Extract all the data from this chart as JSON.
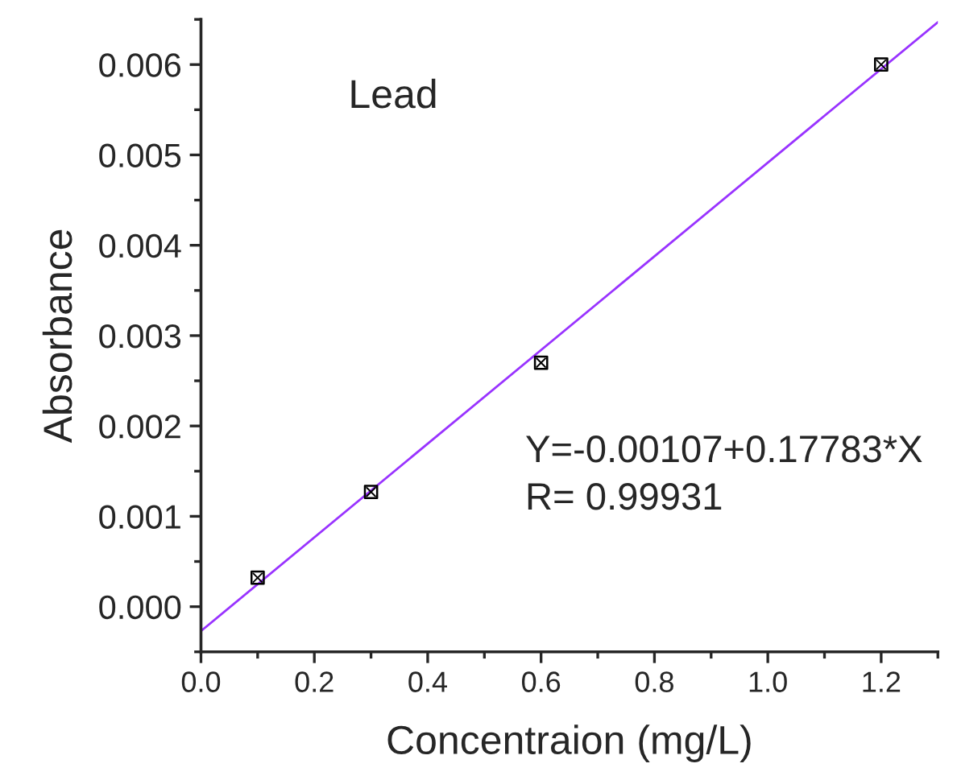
{
  "chart_data": {
    "type": "scatter",
    "xlabel": "Concentraion (mg/L)",
    "ylabel": "Absorbance",
    "xlim": [
      0,
      1.3
    ],
    "ylim": [
      -0.0005,
      0.0065
    ],
    "xticks": [
      {
        "value": 0,
        "label": "0.0"
      },
      {
        "value": 0.2,
        "label": "0.2"
      },
      {
        "value": 0.4,
        "label": "0.4"
      },
      {
        "value": 0.6,
        "label": "0.6"
      },
      {
        "value": 0.8,
        "label": "0.8"
      },
      {
        "value": 1.0,
        "label": "1.0"
      },
      {
        "value": 1.2,
        "label": "1.2"
      }
    ],
    "yticks": [
      {
        "value": 0,
        "label": "0.000"
      },
      {
        "value": 0.001,
        "label": "0.001"
      },
      {
        "value": 0.002,
        "label": "0.002"
      },
      {
        "value": 0.003,
        "label": "0.003"
      },
      {
        "value": 0.004,
        "label": "0.004"
      },
      {
        "value": 0.005,
        "label": "0.005"
      },
      {
        "value": 0.006,
        "label": "0.006"
      }
    ],
    "grid": false,
    "legend": false,
    "series": [
      {
        "marker": "square",
        "color": "#000000",
        "x": [
          0.1,
          0.3,
          0.6,
          1.2
        ],
        "values": [
          0.00032,
          0.00127,
          0.0027,
          0.006
        ]
      },
      {
        "type": "line",
        "marker": "none",
        "color": "#9933ff",
        "x": [
          0,
          1.3
        ],
        "values": [
          -0.00027,
          0.00647
        ]
      }
    ],
    "annotations": [
      "Lead",
      "Y=-0.00107+0.17783*X",
      "R= 0.99931"
    ]
  }
}
